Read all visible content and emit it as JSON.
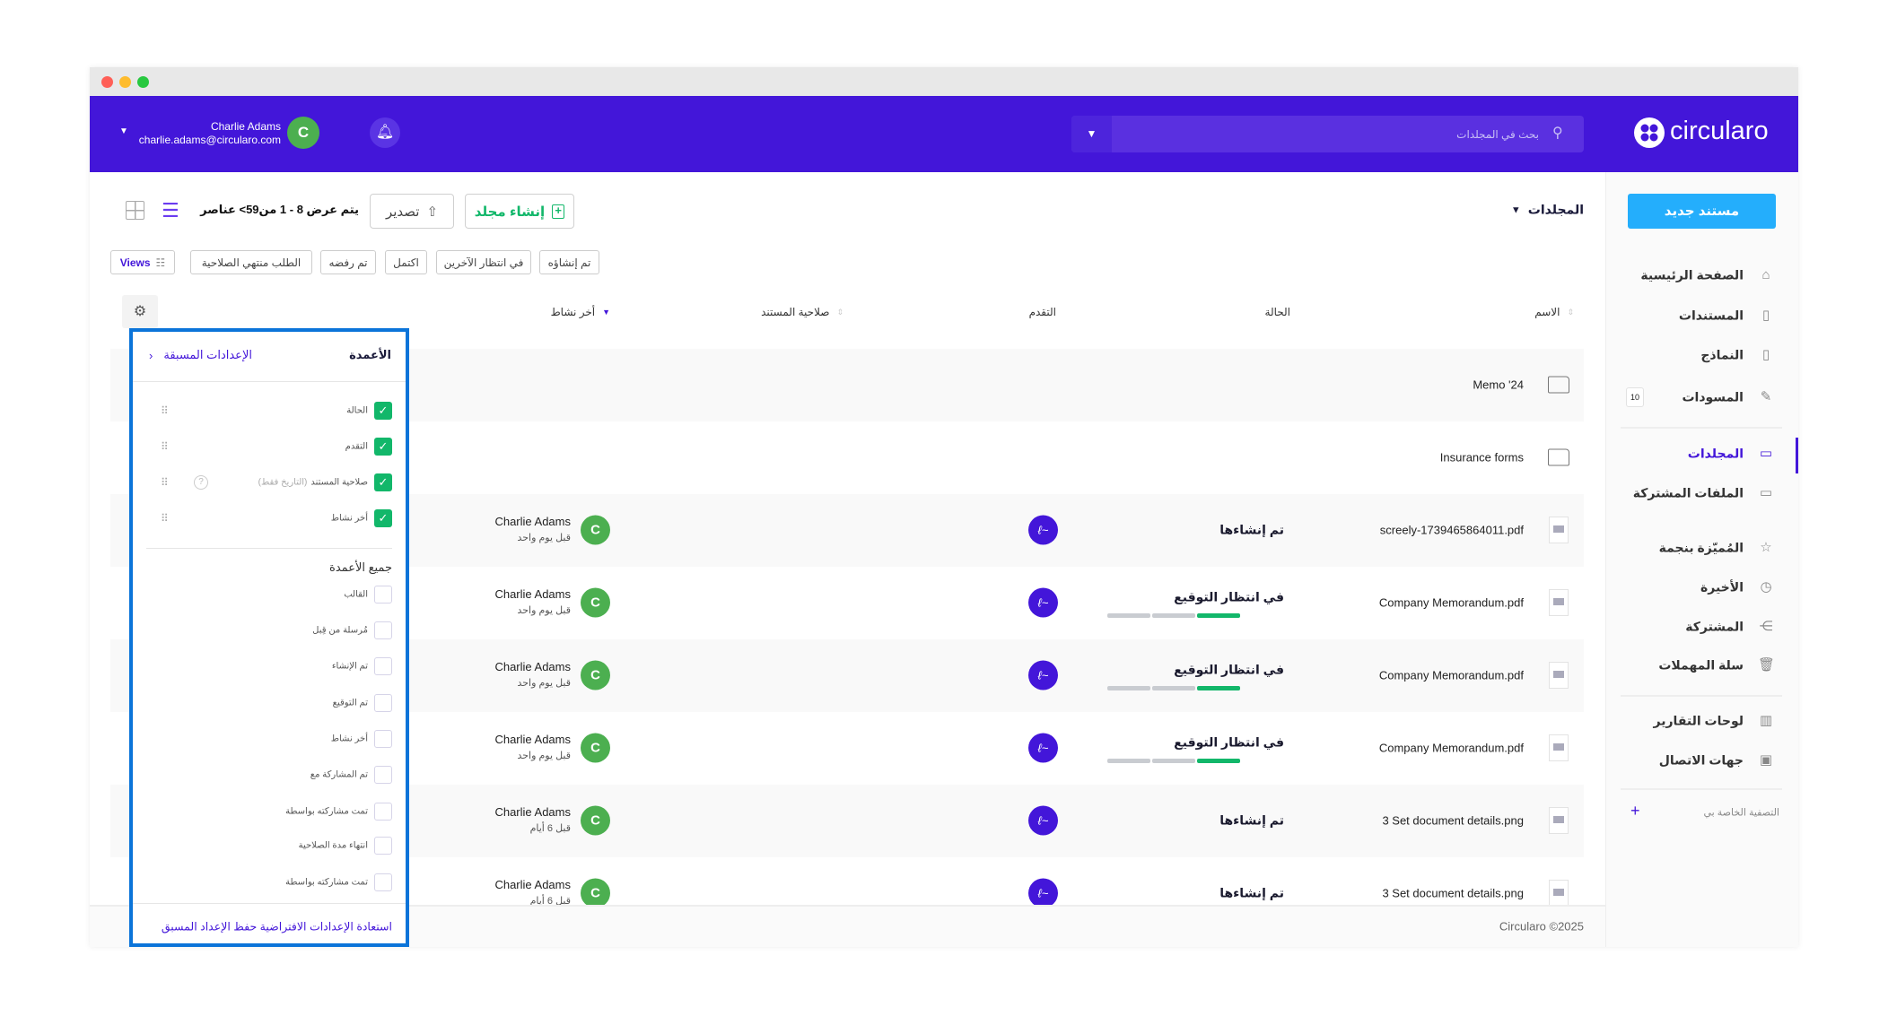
{
  "colors": {
    "brand": "#4316d9",
    "primary_button": "#24aefc",
    "success": "#12b76a",
    "avatar": "#4caf50",
    "popup_border": "#0b74d9"
  },
  "header": {
    "logo_text": "circularo",
    "search_placeholder": "بحث في المجلدات",
    "user_name": "Charlie Adams",
    "user_email": "charlie.adams@circularo.com",
    "avatar_initial": "C"
  },
  "sidebar": {
    "new_document": "مستند جديد",
    "items": [
      {
        "label": "الصفحة الرئيسية",
        "icon": "home-icon"
      },
      {
        "label": "المستندات",
        "icon": "document-icon"
      },
      {
        "label": "النماذج",
        "icon": "clipboard-icon"
      },
      {
        "label": "المسودات",
        "icon": "edit-icon",
        "badge": "10"
      },
      {
        "label": "المجلدات",
        "icon": "folder-icon",
        "active": true
      },
      {
        "label": "الملفات المشتركة",
        "icon": "shared-files-icon"
      },
      {
        "label": "المُميّزة بنجمة",
        "icon": "star-icon"
      },
      {
        "label": "الأخيرة",
        "icon": "clock-icon"
      },
      {
        "label": "المشتركة",
        "icon": "share-icon"
      },
      {
        "label": "سلة المهملات",
        "icon": "trash-icon"
      },
      {
        "label": "لوحات التقارير",
        "icon": "chart-icon"
      },
      {
        "label": "جهات الاتصال",
        "icon": "contacts-icon"
      }
    ],
    "my_filter": "التصفية الخاصة بي"
  },
  "toolbar": {
    "breadcrumb": "المجلدات",
    "create_folder": "إنشاء مجلد",
    "export": "تصدير",
    "count_text": "يتم عرض 8 - 1 من59> عناصر"
  },
  "filters": [
    "تم إنشاؤه",
    "في انتظار الآخرين",
    "اكتمل",
    "تم رفضه",
    "الطلب منتهي الصلاحية"
  ],
  "views_label": "Views",
  "table": {
    "columns": {
      "name": "الاسم",
      "status": "الحالة",
      "progress": "التقدم",
      "validity": "صلاحية المستند",
      "last_activity": "أخر نشاط"
    },
    "rows": [
      {
        "type": "folder",
        "name": "Memo '24"
      },
      {
        "type": "folder",
        "name": "Insurance forms"
      },
      {
        "type": "file",
        "name": "screely-1739465864011.pdf",
        "status": "تم إنشاءها",
        "progress": null,
        "user": "Charlie Adams",
        "time": "قبل يوم واحد"
      },
      {
        "type": "file",
        "name": "Company Memorandum.pdf",
        "status": "في انتظار التوقيع",
        "progress": 0.33,
        "user": "Charlie Adams",
        "time": "قبل يوم واحد"
      },
      {
        "type": "file",
        "name": "Company Memorandum.pdf",
        "status": "في انتظار التوقيع",
        "progress": 0.33,
        "user": "Charlie Adams",
        "time": "قبل يوم واحد"
      },
      {
        "type": "file",
        "name": "Company Memorandum.pdf",
        "status": "في انتظار التوقيع",
        "progress": 0.33,
        "user": "Charlie Adams",
        "time": "قبل يوم واحد"
      },
      {
        "type": "file",
        "name": "3 Set document details.png",
        "status": "تم إنشاءها",
        "progress": null,
        "user": "Charlie Adams",
        "time": "قبل 6 أيام"
      },
      {
        "type": "file",
        "name": "3 Set document details.png",
        "status": "تم إنشاءها",
        "progress": null,
        "user": "Charlie Adams",
        "time": "قبل 6 أيام"
      }
    ]
  },
  "footer": {
    "copyright": "Circularo ©2025"
  },
  "columns_popup": {
    "title": "الأعمدة",
    "presets": "الإعدادات المسبقة",
    "selected": [
      {
        "label": "الحالة"
      },
      {
        "label": "التقدم"
      },
      {
        "label": "صلاحية المستند",
        "hint": "(التاريخ فقط)"
      },
      {
        "label": "أخر نشاط"
      }
    ],
    "all_title": "جميع الأعمدة",
    "all": [
      "القالب",
      "مُرسلة من قِبل",
      "تم الإنشاء",
      "تم التوقيع",
      "أخر نشاط",
      "تم المشاركة مع",
      "تمت مشاركته بواسطة",
      "انتهاء مدة الصلاحية",
      "تمت مشاركته بواسطة"
    ],
    "footer_action": "استعادة الإعدادات الافتراضية حفظ الإعداد المسبق"
  }
}
